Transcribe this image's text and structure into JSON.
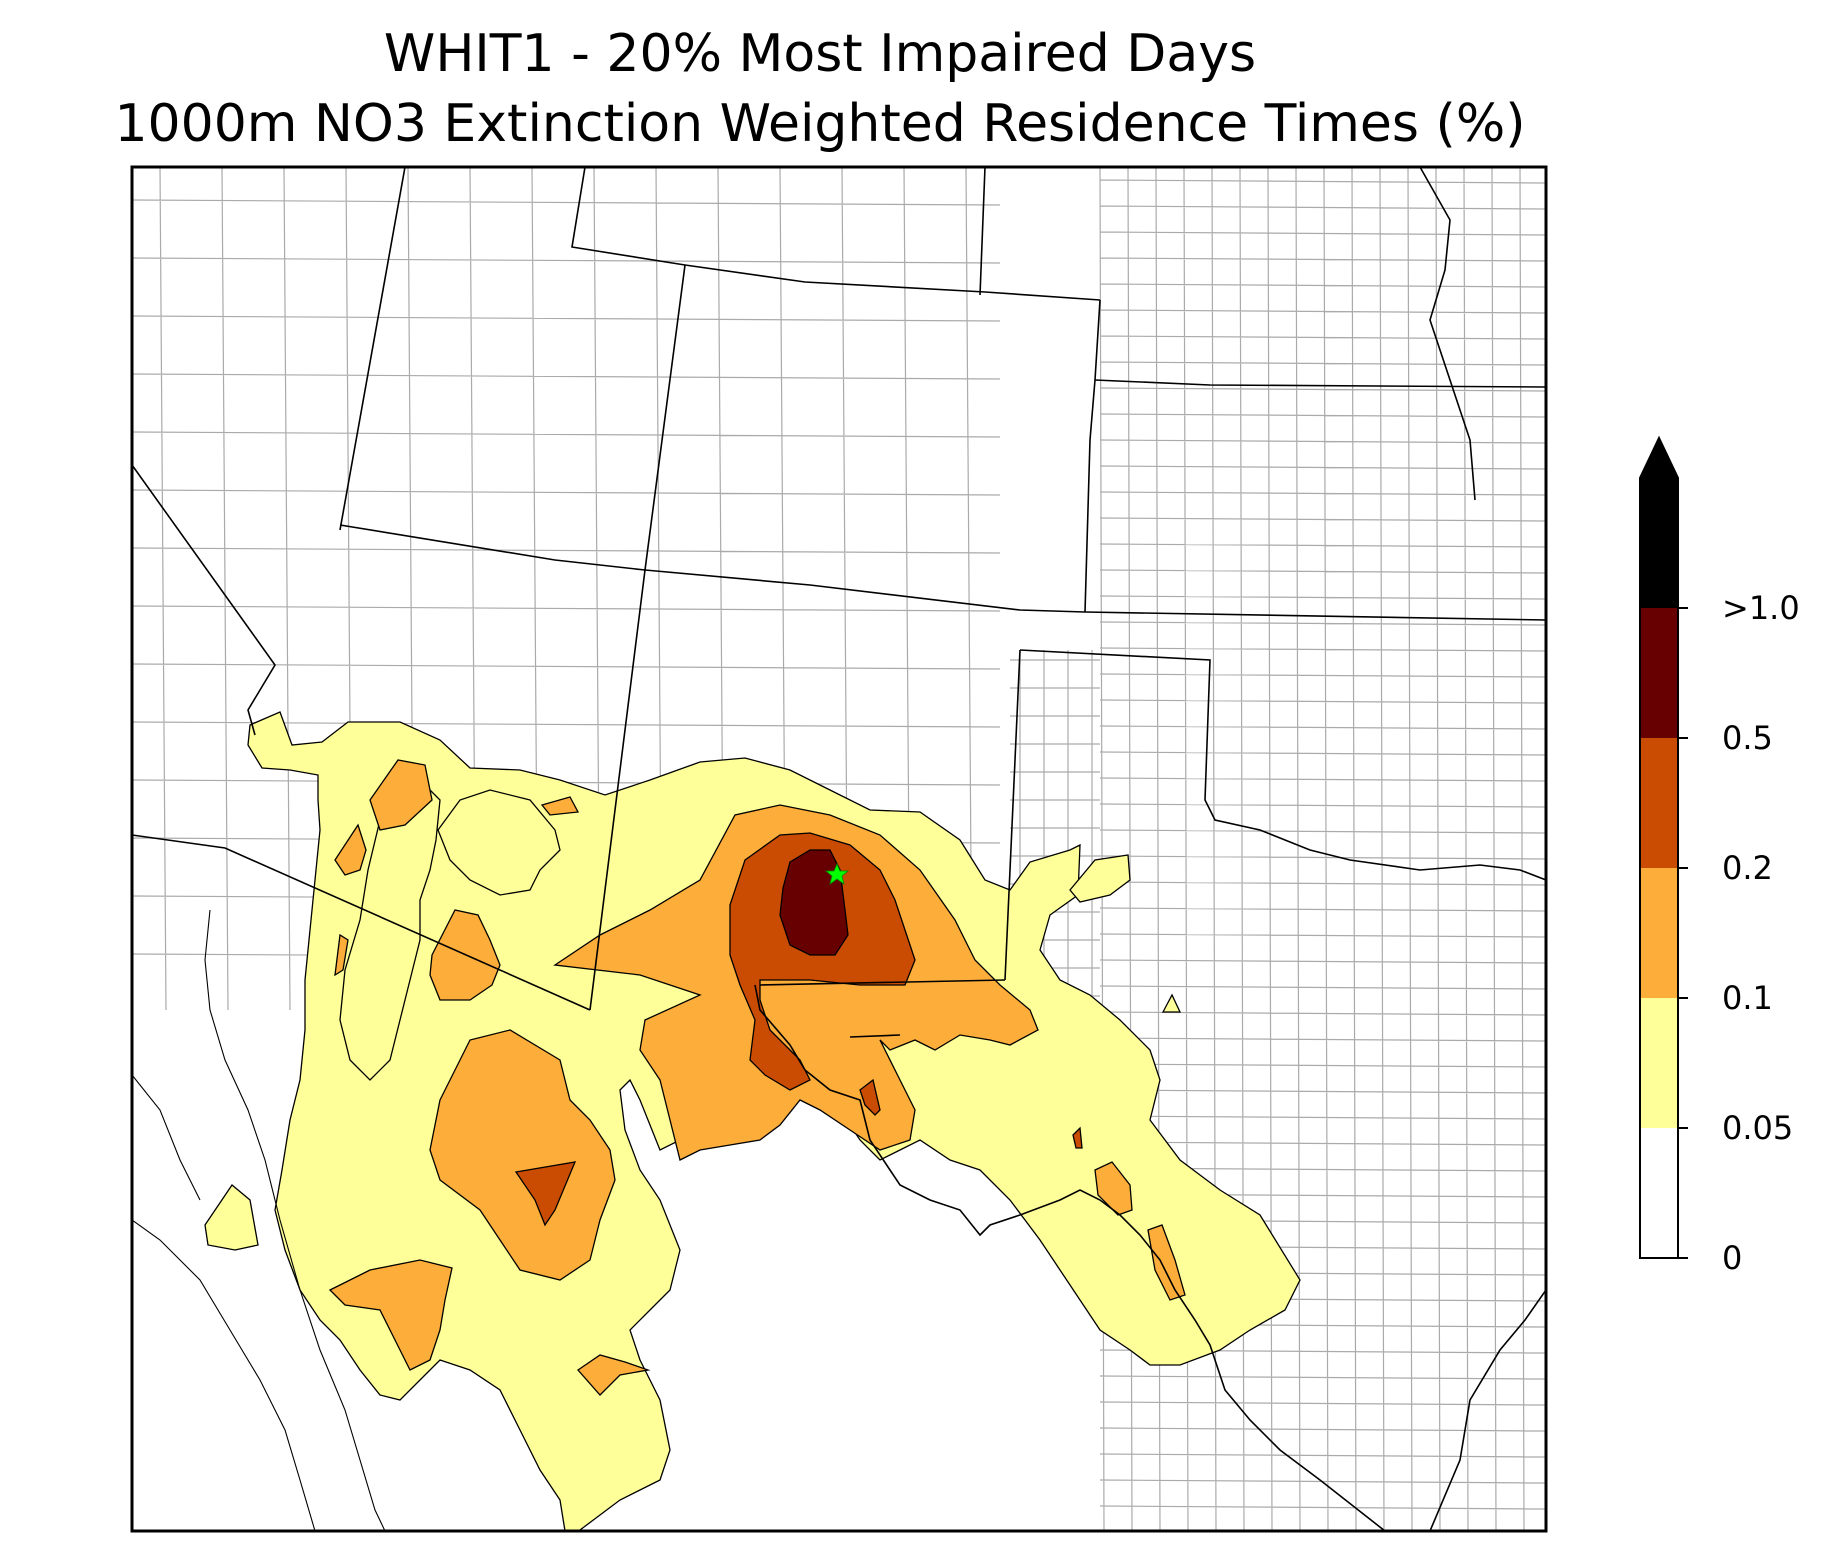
{
  "title": {
    "line1": "WHIT1 - 20% Most Impaired Days",
    "line2": "1000m NO3 Extinction Weighted Residence Times (%)"
  },
  "colorbar": {
    "ticks": [
      "0",
      "0.05",
      "0.1",
      "0.2",
      "0.5",
      ">1.0"
    ],
    "bins": [
      {
        "from": 0,
        "to": 0.05,
        "color": "#ffffff"
      },
      {
        "from": 0.05,
        "to": 0.1,
        "color": "#ffff99"
      },
      {
        "from": 0.1,
        "to": 0.2,
        "color": "#fdad3a"
      },
      {
        "from": 0.2,
        "to": 0.5,
        "color": "#c94c02"
      },
      {
        "from": 0.5,
        "to": 1.0,
        "color": "#670000"
      },
      {
        "from": 1.0,
        "to": null,
        "color": "#000000"
      }
    ],
    "extend": "max"
  },
  "marker": {
    "icon": "star-icon",
    "color": "#00ff00"
  },
  "colors": {
    "state_border": "#000000",
    "county_border": "#aaaaaa",
    "contour_edge": "#000000"
  }
}
